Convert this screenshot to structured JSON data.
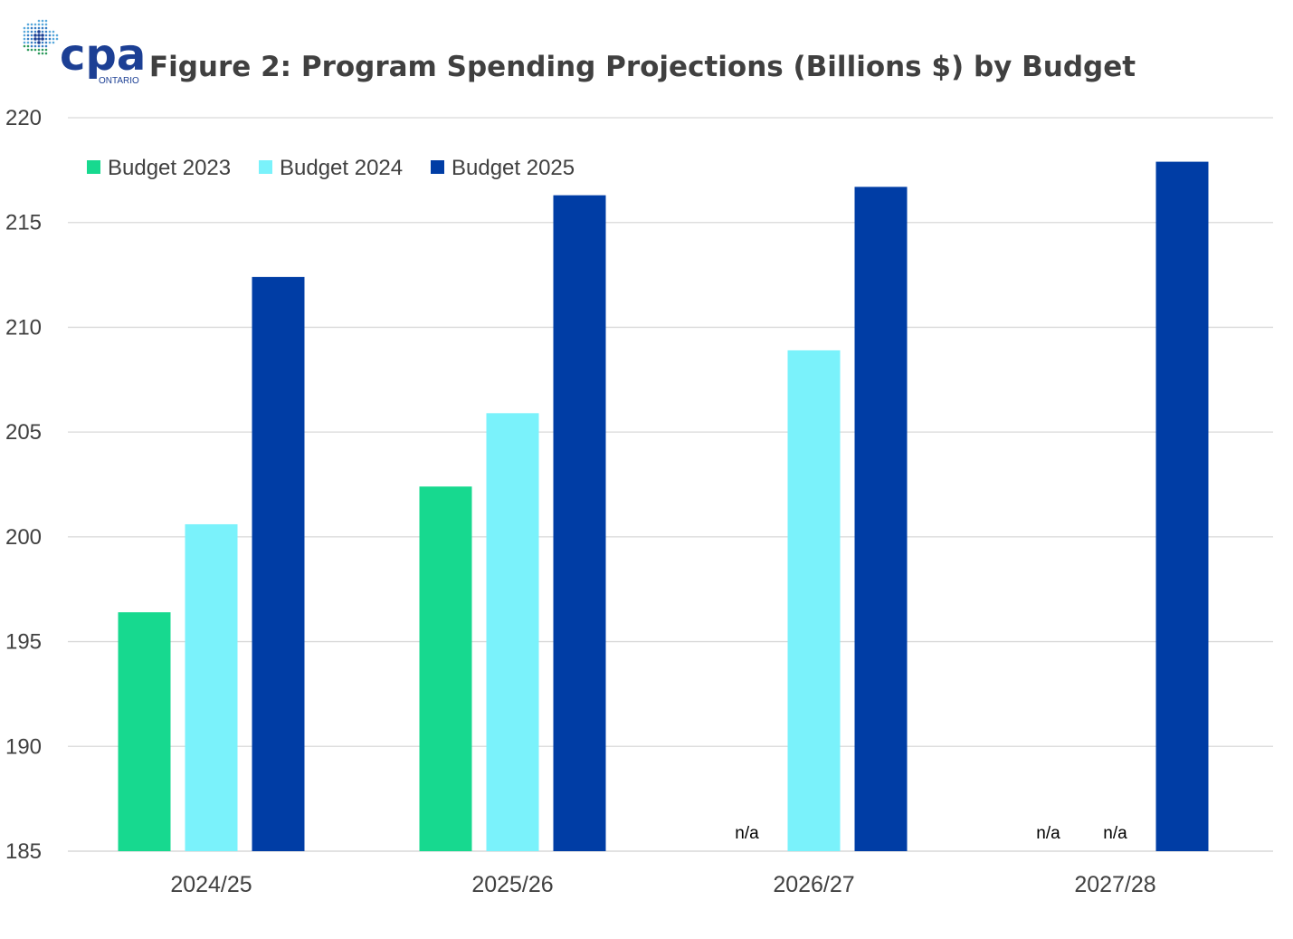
{
  "logo": {
    "text": "cpa",
    "subtext": "ONTARIO",
    "color": "#1c3f94",
    "accent": "#3a7fc4",
    "accent2": "#2e9b5c"
  },
  "chart_data": {
    "type": "bar",
    "title": "Figure 2: Program Spending Projections (Billions $) by Budget",
    "xlabel": "",
    "ylabel": "",
    "ylim": [
      185,
      220
    ],
    "yticks": [
      185,
      190,
      195,
      200,
      205,
      210,
      215,
      220
    ],
    "grid": true,
    "legend_position": "top-left",
    "categories": [
      "2024/25",
      "2025/26",
      "2026/27",
      "2027/28"
    ],
    "na_label": "n/a",
    "series": [
      {
        "name": "Budget 2023",
        "color": "#17d98f",
        "values": [
          196.4,
          202.4,
          null,
          null
        ]
      },
      {
        "name": "Budget 2024",
        "color": "#7af2fb",
        "values": [
          200.6,
          205.9,
          208.9,
          null
        ]
      },
      {
        "name": "Budget 2025",
        "color": "#003da5",
        "values": [
          212.4,
          216.3,
          216.7,
          217.9
        ]
      }
    ]
  }
}
